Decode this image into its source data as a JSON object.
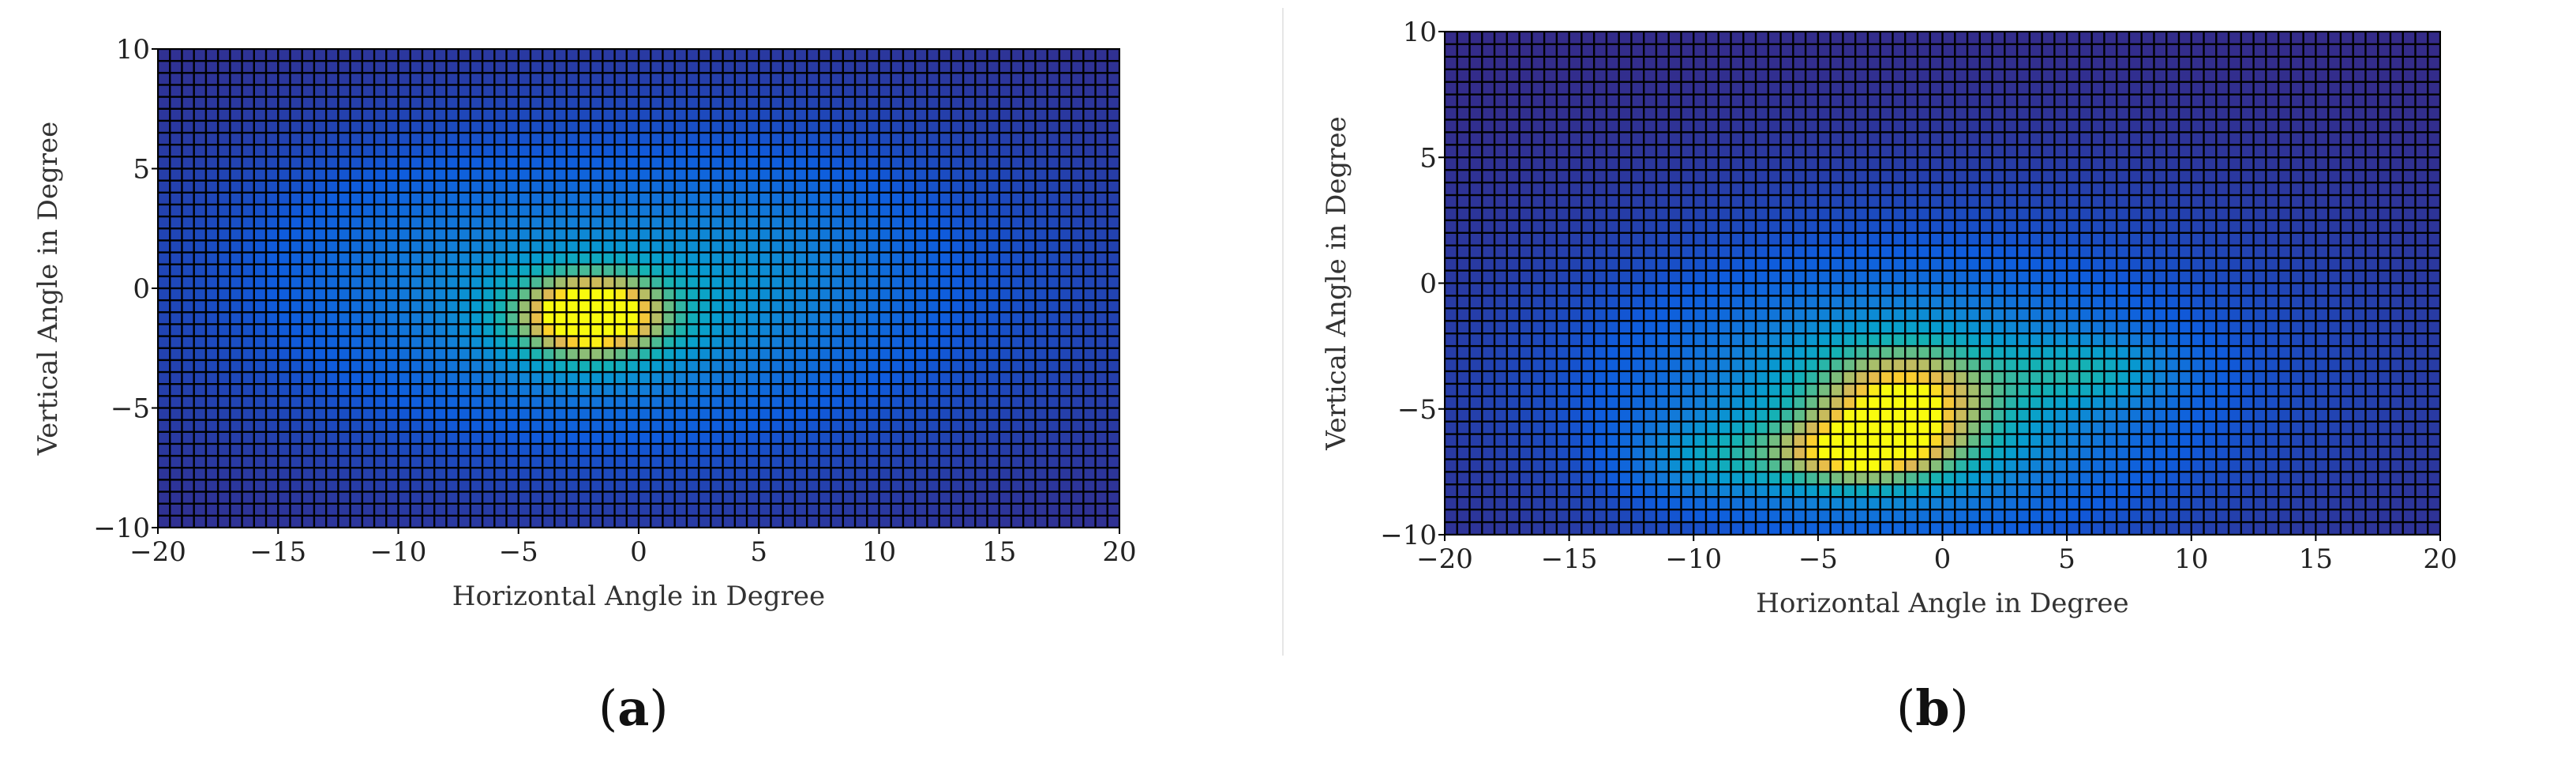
{
  "panels": [
    {
      "label_open": "(",
      "label_letter": "a",
      "label_close": ")"
    },
    {
      "label_open": "(",
      "label_letter": "b",
      "label_close": ")"
    }
  ],
  "chart_data": [
    {
      "type": "heatmap",
      "colormap": "parula",
      "xlabel": "Horizontal Angle in Degree",
      "ylabel": "Vertical Angle in Degree",
      "xlim": [
        -20,
        20
      ],
      "ylim": [
        -10,
        10
      ],
      "xticks": [
        -20,
        -15,
        -10,
        -5,
        0,
        5,
        10,
        15,
        20
      ],
      "yticks": [
        -10,
        -5,
        0,
        5,
        10
      ],
      "grid_cells_x": 80,
      "grid_cells_y": 40,
      "cell_edge_color": "#000000",
      "components": [
        {
          "x": -2.0,
          "y": -1.2,
          "sx": 2.3,
          "sy": 1.3,
          "amp": 0.85
        },
        {
          "x": -1.5,
          "y": -1.0,
          "sx": 6.5,
          "sy": 3.0,
          "amp": 0.22
        },
        {
          "x": 5.5,
          "y": 1.5,
          "sx": 4.0,
          "sy": 2.5,
          "amp": 0.1
        },
        {
          "x": -9.0,
          "y": 2.0,
          "sx": 5.0,
          "sy": 2.5,
          "amp": 0.06
        },
        {
          "x": 0.0,
          "y": 0.0,
          "sx": 15.0,
          "sy": 6.0,
          "amp": 0.18
        }
      ],
      "value_range": [
        0,
        1
      ]
    },
    {
      "type": "heatmap",
      "colormap": "parula",
      "xlabel": "Horizontal Angle in Degree",
      "ylabel": "Vertical Angle in Degree",
      "xlim": [
        -20,
        20
      ],
      "ylim": [
        -10,
        10
      ],
      "xticks": [
        -20,
        -15,
        -10,
        -5,
        0,
        5,
        10,
        15,
        20
      ],
      "yticks": [
        -10,
        -5,
        0,
        5,
        10
      ],
      "grid_cells_x": 80,
      "grid_cells_y": 40,
      "cell_edge_color": "#000000",
      "components": [
        {
          "x": -3.5,
          "y": -6.8,
          "sx": 2.8,
          "sy": 1.0,
          "amp": 0.6
        },
        {
          "x": -1.5,
          "y": -4.5,
          "sx": 2.8,
          "sy": 1.6,
          "amp": 0.55
        },
        {
          "x": 6.0,
          "y": -3.5,
          "sx": 2.2,
          "sy": 0.9,
          "amp": 0.3
        },
        {
          "x": -9.5,
          "y": -7.0,
          "sx": 2.0,
          "sy": 1.0,
          "amp": 0.22
        },
        {
          "x": -2.0,
          "y": -5.0,
          "sx": 6.5,
          "sy": 3.2,
          "amp": 0.35
        },
        {
          "x": 0.0,
          "y": -3.0,
          "sx": 14.0,
          "sy": 5.5,
          "amp": 0.14
        }
      ],
      "value_range": [
        0,
        1
      ]
    }
  ]
}
